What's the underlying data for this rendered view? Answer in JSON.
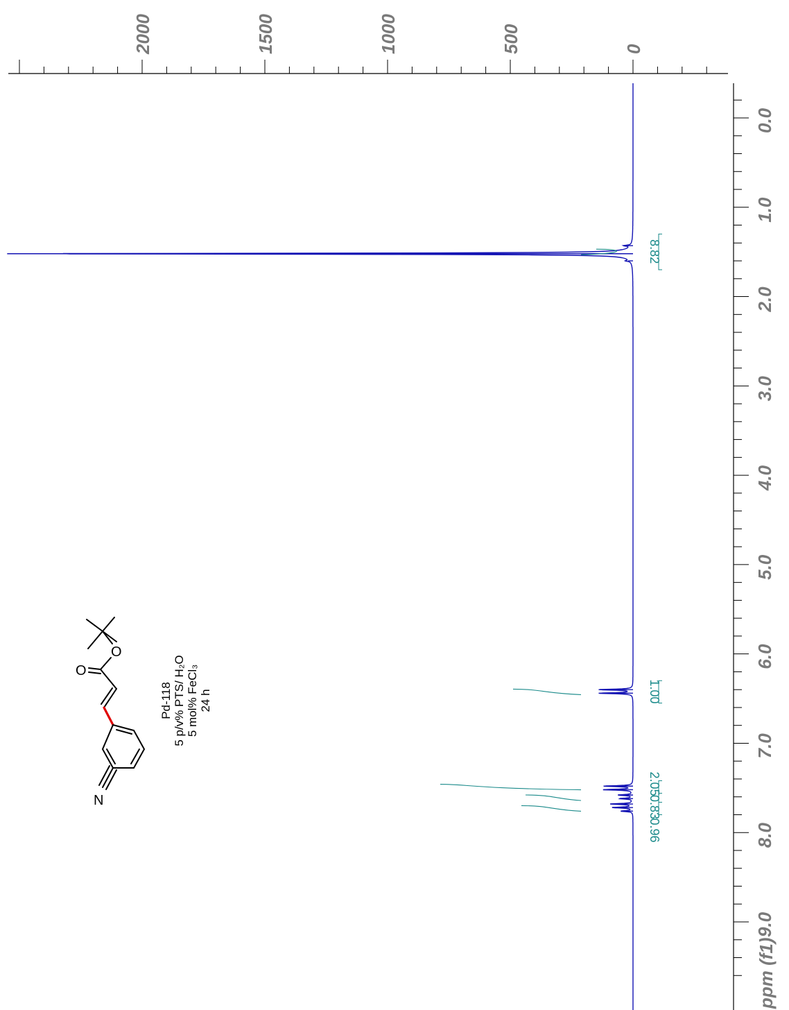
{
  "chart_data": {
    "type": "line",
    "orientation": "rotated-90",
    "axis_shift": {
      "label": "ppm (f1)",
      "ticks": [
        "0.0",
        "1.0",
        "2.0",
        "3.0",
        "4.0",
        "5.0",
        "6.0",
        "7.0",
        "8.0",
        "9.0"
      ],
      "range": [
        0.0,
        9.6
      ]
    },
    "axis_intensity": {
      "ticks": [
        "2000",
        "1500",
        "1000",
        "500",
        "0"
      ],
      "range": [
        -300,
        2600
      ]
    },
    "peaks": [
      {
        "shift": 1.52,
        "intensity": 2550
      },
      {
        "shift": 1.43,
        "intensity": 30
      },
      {
        "shift": 1.6,
        "intensity": 20
      },
      {
        "shift": 6.4,
        "intensity": 140
      },
      {
        "shift": 6.44,
        "intensity": 140
      },
      {
        "shift": 7.48,
        "intensity": 120
      },
      {
        "shift": 7.52,
        "intensity": 120
      },
      {
        "shift": 7.58,
        "intensity": 60
      },
      {
        "shift": 7.62,
        "intensity": 55
      },
      {
        "shift": 7.68,
        "intensity": 90
      },
      {
        "shift": 7.72,
        "intensity": 85
      },
      {
        "shift": 7.76,
        "intensity": 50
      }
    ],
    "integrals": [
      {
        "label": "8.82",
        "from": 1.3,
        "to": 1.7
      },
      {
        "label": "1.00",
        "from": 6.3,
        "to": 6.55
      },
      {
        "label": "2.05",
        "from": 7.42,
        "to": 7.56
      },
      {
        "label": "0.83",
        "from": 7.56,
        "to": 7.66
      },
      {
        "label": "0.96",
        "from": 7.66,
        "to": 7.8
      }
    ]
  },
  "sample": {
    "label": "Pd-118",
    "conditions": [
      "5 p/v% PTS/ H₂O",
      "5 mol% FeCl₃",
      "24 h"
    ],
    "atoms": {
      "o_carbonyl": "O",
      "o_ester": "O",
      "n_nitrile": "N"
    }
  }
}
